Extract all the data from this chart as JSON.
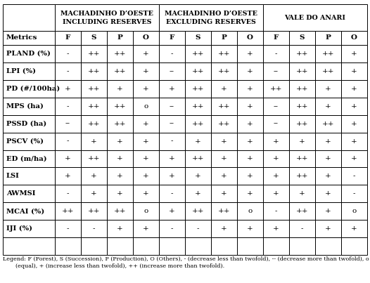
{
  "header1": "MACHADINHO D’OESTE\nINCLUDING RESERVES",
  "header2": "MACHADINHO D’OESTE\nEXCLUDING RESERVES",
  "header3": "VALE DO ANARI",
  "sub_headers": [
    "F",
    "S",
    "P",
    "O"
  ],
  "metrics": [
    "Metrics",
    "PLAND (%)",
    "LPI (%)",
    "PD (#/100ha)",
    "MPS (ha)",
    "PSSD (ha)",
    "PSCV (%)",
    "ED (m/ha)",
    "LSI",
    "AWMSI",
    "MCAI (%)",
    "IJI (%)"
  ],
  "data": [
    [
      "-",
      "++",
      "++",
      "+",
      "-",
      "++",
      "++",
      "+",
      "-",
      "++",
      "++",
      "+"
    ],
    [
      "-",
      "++",
      "++",
      "+",
      "--",
      "++",
      "++",
      "+",
      "--",
      "++",
      "++",
      "+"
    ],
    [
      "+",
      "++",
      "+",
      "+",
      "+",
      "++",
      "+",
      "+",
      "++",
      "++",
      "+",
      "+"
    ],
    [
      "-",
      "++",
      "++",
      "o",
      "--",
      "++",
      "++",
      "+",
      "--",
      "++",
      "+",
      "+"
    ],
    [
      "--",
      "++",
      "++",
      "+",
      "--",
      "++",
      "++",
      "+",
      "--",
      "++",
      "++",
      "+"
    ],
    [
      "-",
      "+",
      "+",
      "+",
      "-",
      "+",
      "+",
      "+",
      "+",
      "+",
      "+",
      "+"
    ],
    [
      "+",
      "++",
      "+",
      "+",
      "+",
      "++",
      "+",
      "+",
      "+",
      "++",
      "+",
      "+"
    ],
    [
      "+",
      "+",
      "+",
      "+",
      "+",
      "+",
      "+",
      "+",
      "+",
      "++",
      "+",
      "-"
    ],
    [
      "-",
      "+",
      "+",
      "+",
      "-",
      "+",
      "+",
      "+",
      "+",
      "+",
      "+",
      "-"
    ],
    [
      "++",
      "++",
      "++",
      "o",
      "+",
      "++",
      "++",
      "o",
      "-",
      "++",
      "+",
      "o"
    ],
    [
      "-",
      "-",
      "+",
      "+",
      "-",
      "-",
      "+",
      "+",
      "+",
      "-",
      "+",
      "+"
    ]
  ],
  "legend_line1": "Legend: F (Forest), S (Succession), P (Production), O (Others), - (decrease less than twofold), -- (decrease more than twofold), o",
  "legend_line2": "(equal), + (increase less than twofold), ++ (increase more than twofold).",
  "fig_w": 5.26,
  "fig_h": 4.03,
  "dpi": 100
}
